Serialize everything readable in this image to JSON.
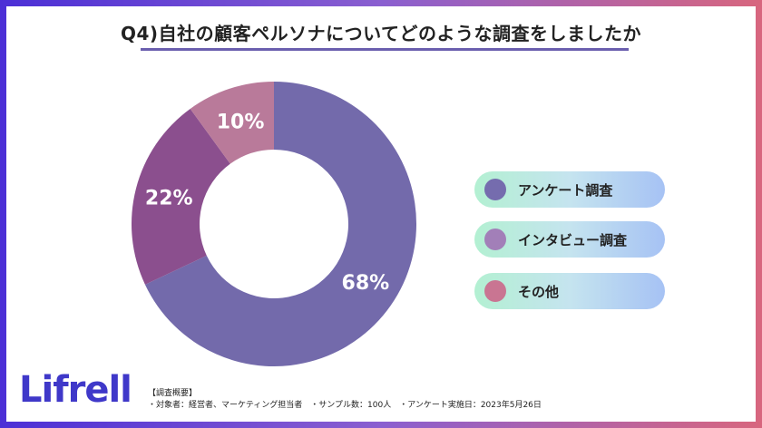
{
  "title": "Q4)自社の顧客ペルソナについてどのような調査をしましたか",
  "chart_data": {
    "type": "pie",
    "title": "Q4)自社の顧客ペルソナについてどのような調査をしましたか",
    "categories": [
      "アンケート調査",
      "インタビュー調査",
      "その他"
    ],
    "values": [
      68,
      22,
      10
    ],
    "labels": [
      "68%",
      "22%",
      "10%"
    ],
    "colors": [
      "#736aab",
      "#8b4f8e",
      "#b97a9a"
    ],
    "legend_dot_colors": [
      "#756cae",
      "#a27fb8",
      "#c97592"
    ]
  },
  "legend": [
    {
      "label": "アンケート調査"
    },
    {
      "label": "インタビュー調査"
    },
    {
      "label": "その他"
    }
  ],
  "brand": {
    "logo": "Lifrell"
  },
  "survey": {
    "heading": "【調査概要】",
    "details": "・対象者：経営者、マーケティング担当者　・サンプル数：100人　・アンケート実施日：2023年5月26日"
  }
}
